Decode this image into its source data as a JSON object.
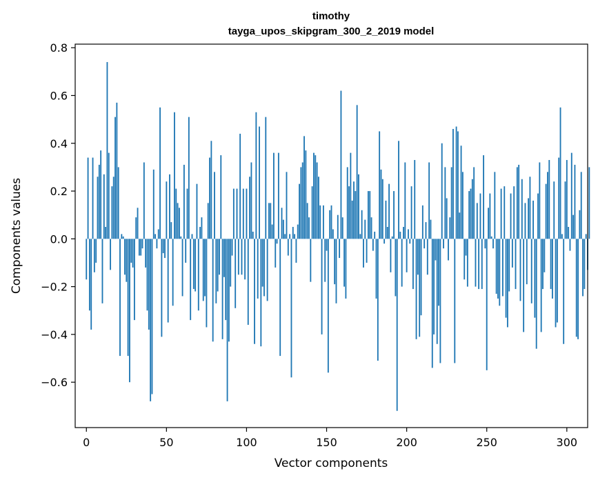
{
  "chart_data": {
    "type": "bar",
    "title": "timothy",
    "subtitle": "tayga_upos_skipgram_300_2_2019 model",
    "xlabel": "Vector components",
    "ylabel": "Components values",
    "xlim": [
      -7,
      313
    ],
    "ylim": [
      -0.79,
      0.815
    ],
    "xticks": [
      0,
      50,
      100,
      150,
      200,
      250,
      300
    ],
    "yticks": [
      -0.6,
      -0.4,
      -0.2,
      0.0,
      0.2,
      0.4,
      0.6,
      0.8
    ],
    "ytick_labels": [
      "−0.6",
      "−0.4",
      "−0.2",
      "0.0",
      "0.2",
      "0.4",
      "0.6",
      "0.8"
    ],
    "xtick_labels": [
      "0",
      "50",
      "100",
      "150",
      "200",
      "250",
      "300"
    ],
    "grid": false,
    "bar_color": "#1f77b4",
    "values": [
      -0.17,
      0.34,
      -0.3,
      -0.38,
      0.34,
      -0.14,
      -0.1,
      0.26,
      0.31,
      0.37,
      -0.27,
      0.27,
      0.05,
      0.74,
      0.36,
      -0.13,
      0.22,
      0.26,
      0.51,
      0.57,
      0.3,
      -0.49,
      0.02,
      0.01,
      -0.15,
      -0.18,
      -0.49,
      -0.6,
      -0.1,
      -0.12,
      -0.34,
      0.09,
      0.13,
      -0.07,
      -0.07,
      -0.04,
      0.32,
      -0.12,
      -0.3,
      -0.38,
      -0.68,
      -0.65,
      0.29,
      0.02,
      -0.04,
      0.04,
      0.55,
      -0.41,
      -0.06,
      -0.08,
      0.24,
      -0.35,
      0.27,
      0.07,
      -0.28,
      0.53,
      0.21,
      0.15,
      0.13,
      0.01,
      -0.24,
      0.31,
      -0.1,
      0.21,
      0.51,
      -0.34,
      0.02,
      -0.21,
      -0.22,
      0.23,
      -0.3,
      0.05,
      0.09,
      -0.26,
      -0.24,
      -0.37,
      0.15,
      0.34,
      0.41,
      -0.43,
      0.28,
      -0.27,
      -0.22,
      -0.15,
      0.35,
      -0.42,
      -0.16,
      -0.34,
      -0.68,
      -0.43,
      -0.2,
      -0.07,
      0.21,
      -0.29,
      0.21,
      -0.15,
      0.44,
      -0.15,
      0.21,
      -0.17,
      0.21,
      -0.36,
      0.26,
      0.32,
      0.03,
      -0.44,
      0.53,
      -0.25,
      0.47,
      -0.45,
      -0.2,
      -0.24,
      0.51,
      -0.26,
      0.15,
      0.15,
      0.06,
      0.36,
      -0.12,
      -0.02,
      0.36,
      -0.49,
      0.13,
      0.08,
      0.02,
      0.28,
      -0.07,
      0.02,
      -0.58,
      0.05,
      0.02,
      -0.1,
      0.06,
      0.23,
      0.3,
      0.32,
      0.43,
      0.37,
      0.15,
      0.09,
      -0.18,
      0.22,
      0.36,
      0.35,
      0.32,
      0.26,
      0.14,
      -0.4,
      0.14,
      -0.18,
      -0.05,
      -0.56,
      0.12,
      0.14,
      0.04,
      -0.19,
      -0.27,
      0.1,
      -0.08,
      0.62,
      0.09,
      -0.2,
      -0.25,
      0.3,
      0.22,
      0.36,
      0.16,
      0.24,
      0.2,
      0.56,
      0.27,
      0.02,
      0.12,
      -0.12,
      0.08,
      -0.1,
      0.2,
      0.2,
      0.09,
      -0.05,
      0.03,
      -0.25,
      -0.51,
      0.45,
      0.29,
      0.25,
      -0.02,
      0.16,
      0.05,
      0.23,
      -0.14,
      0.01,
      0.2,
      -0.24,
      -0.72,
      0.41,
      0.03,
      -0.2,
      0.05,
      0.32,
      -0.14,
      0.04,
      -0.02,
      0.22,
      -0.21,
      0.33,
      -0.42,
      -0.15,
      -0.41,
      -0.32,
      0.14,
      -0.04,
      0.07,
      -0.15,
      0.32,
      0.08,
      -0.54,
      -0.4,
      -0.09,
      -0.44,
      -0.28,
      -0.52,
      0.4,
      -0.04,
      0.3,
      0.17,
      -0.09,
      0.09,
      0.3,
      0.46,
      -0.52,
      0.47,
      0.45,
      0.11,
      0.39,
      0.28,
      -0.17,
      -0.07,
      -0.2,
      0.2,
      0.21,
      0.25,
      0.3,
      -0.2,
      0.15,
      -0.21,
      0.19,
      -0.21,
      0.35,
      -0.04,
      -0.55,
      0.13,
      0.19,
      0.01,
      -0.04,
      0.28,
      -0.23,
      -0.25,
      -0.28,
      0.21,
      -0.24,
      0.22,
      -0.33,
      -0.37,
      -0.22,
      0.19,
      -0.12,
      0.22,
      -0.21,
      0.3,
      0.31,
      -0.26,
      0.25,
      -0.39,
      0.15,
      -0.19,
      0.17,
      0.26,
      -0.27,
      0.16,
      -0.33,
      -0.46,
      0.19,
      0.32,
      -0.39,
      -0.21,
      -0.14,
      0.23,
      0.28,
      0.33,
      -0.21,
      -0.25,
      0.24,
      -0.37,
      -0.35,
      0.34,
      0.55,
      0.02,
      -0.44,
      0.24,
      0.33,
      0.05,
      -0.05,
      0.36,
      0.1,
      0.31,
      -0.41,
      -0.42,
      0.12,
      0.28,
      -0.24,
      -0.21,
      0.02,
      -0.13,
      0.3
    ]
  }
}
